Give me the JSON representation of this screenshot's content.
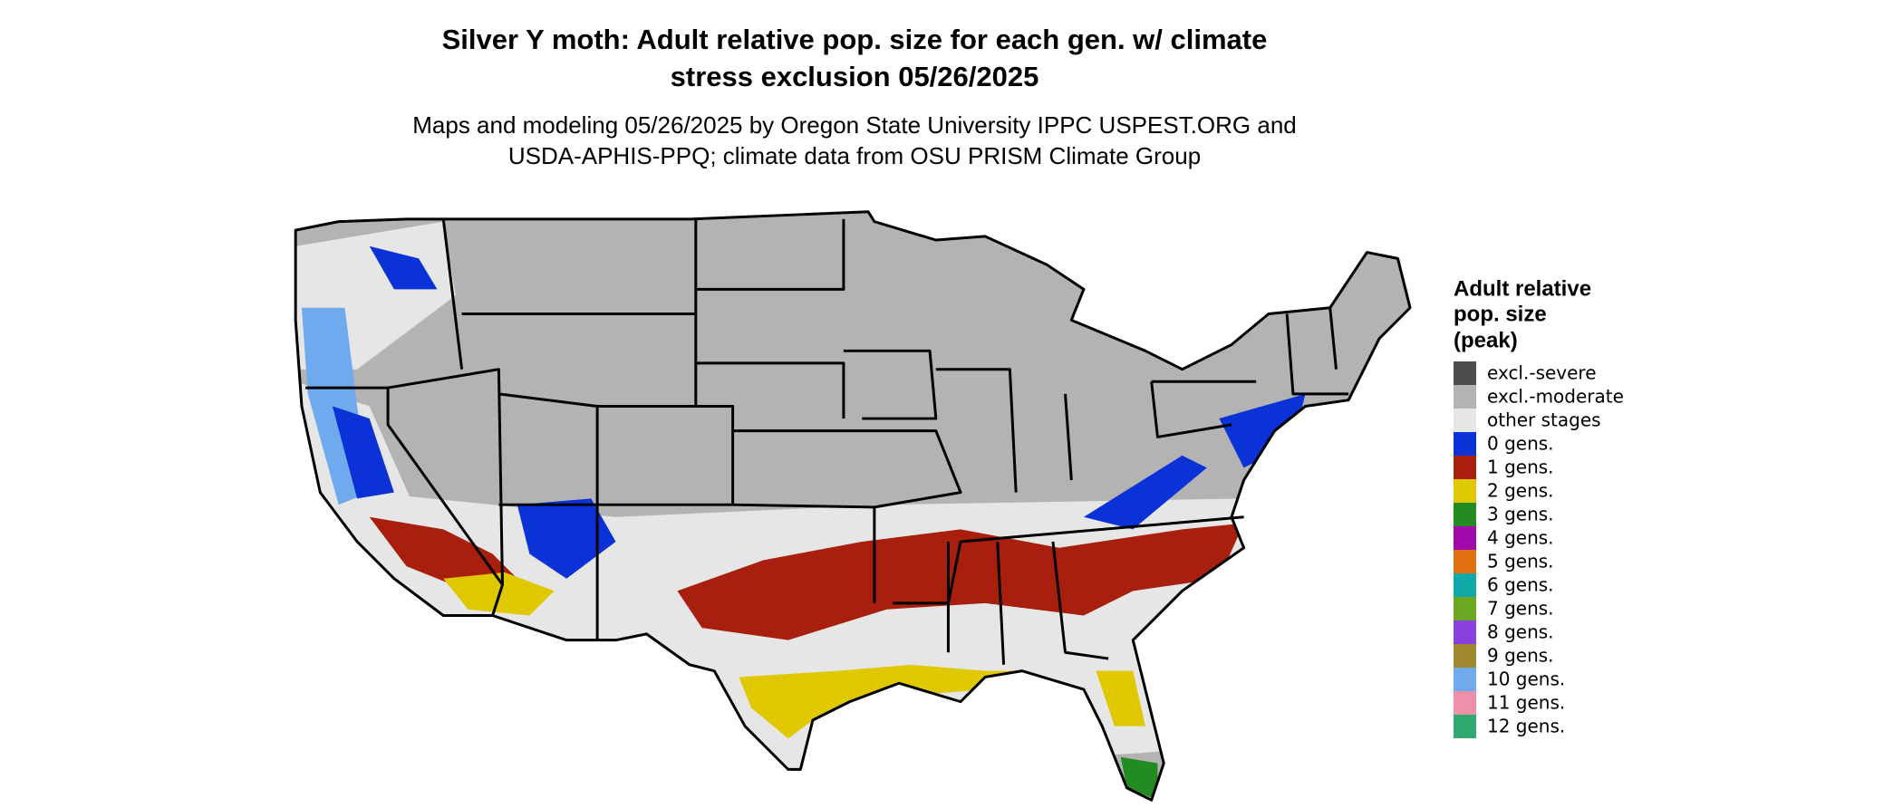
{
  "header": {
    "title": [
      "Silver Y moth: Adult relative pop. size for each gen. w/ climate",
      "stress exclusion 05/26/2025"
    ],
    "subtitle": [
      "Maps and modeling 05/26/2025 by Oregon State University IPPC USPEST.ORG and",
      "USDA-APHIS-PPQ; climate data from OSU PRISM Climate Group"
    ]
  },
  "legend": {
    "title": [
      "Adult relative",
      "pop. size",
      "(peak)"
    ],
    "items": [
      {
        "label": "excl.-severe",
        "color": "#4d4d4d"
      },
      {
        "label": "excl.-moderate",
        "color": "#b3b3b3"
      },
      {
        "label": "other stages",
        "color": "#e6e6e6"
      },
      {
        "label": "0 gens.",
        "color": "#0a32d6"
      },
      {
        "label": "1 gens.",
        "color": "#a8200d"
      },
      {
        "label": "2 gens.",
        "color": "#e0c800"
      },
      {
        "label": "3 gens.",
        "color": "#228b22"
      },
      {
        "label": "4 gens.",
        "color": "#a00aa8"
      },
      {
        "label": "5 gens.",
        "color": "#e07010"
      },
      {
        "label": "6 gens.",
        "color": "#10a8a8"
      },
      {
        "label": "7 gens.",
        "color": "#6aa820"
      },
      {
        "label": "8 gens.",
        "color": "#8a40e0"
      },
      {
        "label": "9 gens.",
        "color": "#a08830"
      },
      {
        "label": "10 gens.",
        "color": "#70aaee"
      },
      {
        "label": "11 gens.",
        "color": "#ee90a8"
      },
      {
        "label": "12 gens.",
        "color": "#30a870"
      }
    ]
  }
}
